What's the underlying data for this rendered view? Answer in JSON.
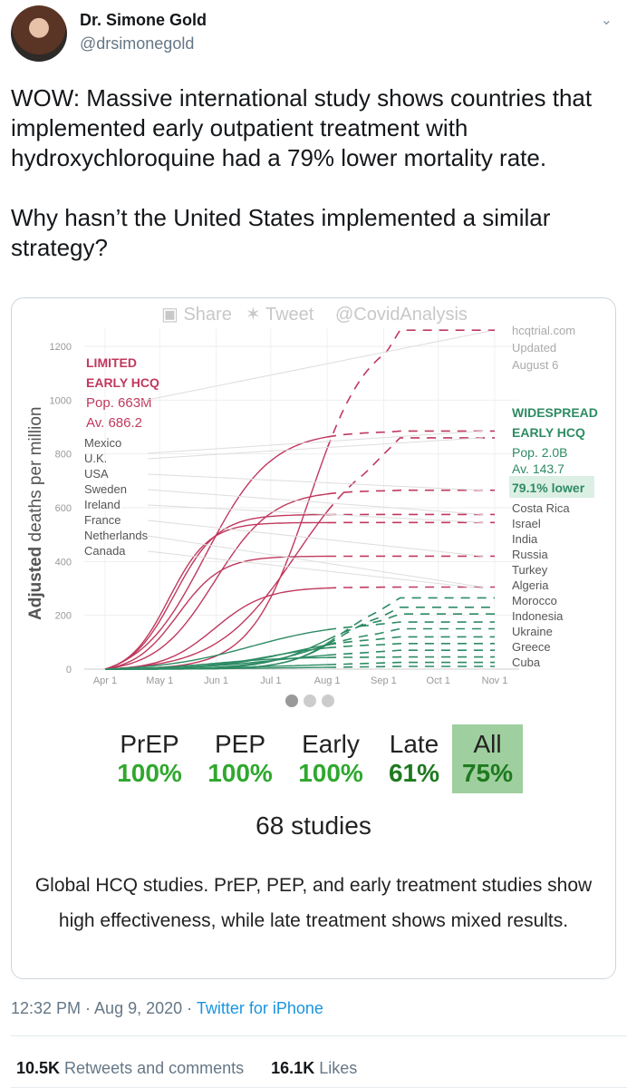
{
  "user": {
    "name": "Dr. Simone Gold",
    "handle": "@drsimonegold"
  },
  "tweet": {
    "paragraph1": "WOW: Massive international study shows countries that implemented early outpatient treatment with hydroxychloroquine had a 79% lower mortality rate.",
    "paragraph2": "Why hasn’t the United States implemented a similar strategy?"
  },
  "card": {
    "share_bar": {
      "share": "Share",
      "tweet": "Tweet",
      "account": "@CovidAnalysis"
    },
    "stats": [
      {
        "label": "PrEP",
        "value": "100%"
      },
      {
        "label": "PEP",
        "value": "100%"
      },
      {
        "label": "Early",
        "value": "100%"
      },
      {
        "label": "Late",
        "value": "61%"
      },
      {
        "label": "All",
        "value": "75%"
      }
    ],
    "studies": "68 studies",
    "caption": "Global HCQ studies. PrEP, PEP, and early treatment studies show high effectiveness, while late treatment shows mixed results."
  },
  "chart_data": {
    "type": "line",
    "ylabel_bold": "Adjusted",
    "ylabel_rest": " deaths per million",
    "yticks": [
      "0",
      "200",
      "400",
      "600",
      "800",
      "1000",
      "1200"
    ],
    "ylim": [
      0,
      1200
    ],
    "xticks": [
      "Apr 1",
      "May 1",
      "Jun 1",
      "Jul 1",
      "Aug 1",
      "Sep 1",
      "Oct 1",
      "Nov 1"
    ],
    "source": [
      "hcqtrial.com",
      "Updated",
      "August 6"
    ],
    "limited": {
      "title1": "LIMITED",
      "title2": "EARLY HCQ",
      "pop": "Pop. 663M",
      "avg": "Av. 686.2",
      "countries": [
        "Mexico",
        "U.K.",
        "USA",
        "Sweden",
        "Ireland",
        "France",
        "Netherlands",
        "Canada"
      ],
      "color": "#c0395e"
    },
    "widespread": {
      "title1": "WIDESPREAD",
      "title2": "EARLY HCQ",
      "pop": "Pop. 2.0B",
      "avg": "Av. 143.7",
      "lower": "79.1% lower",
      "countries": [
        "Costa Rica",
        "Israel",
        "India",
        "Russia",
        "Turkey",
        "Algeria",
        "Morocco",
        "Indonesia",
        "Ukraine",
        "Greece",
        "Cuba"
      ],
      "color": "#2e8b64"
    },
    "series": [
      {
        "group": "limited",
        "final": 1260,
        "mid": 112,
        "w": 16
      },
      {
        "group": "limited",
        "final": 885,
        "mid": 55,
        "w": 18
      },
      {
        "group": "limited",
        "final": 860,
        "mid": 105,
        "w": 22
      },
      {
        "group": "limited",
        "final": 665,
        "mid": 60,
        "w": 16
      },
      {
        "group": "limited",
        "final": 575,
        "mid": 38,
        "w": 12
      },
      {
        "group": "limited",
        "final": 545,
        "mid": 35,
        "w": 11
      },
      {
        "group": "limited",
        "final": 420,
        "mid": 40,
        "w": 12
      },
      {
        "group": "limited",
        "final": 305,
        "mid": 60,
        "w": 14
      },
      {
        "group": "widespread",
        "final": 265,
        "mid": 130,
        "w": 14
      },
      {
        "group": "widespread",
        "final": 230,
        "mid": 128,
        "w": 14
      },
      {
        "group": "widespread",
        "final": 205,
        "mid": 120,
        "w": 16
      },
      {
        "group": "widespread",
        "final": 175,
        "mid": 80,
        "w": 25
      },
      {
        "group": "widespread",
        "final": 150,
        "mid": 115,
        "w": 18
      },
      {
        "group": "widespread",
        "final": 120,
        "mid": 100,
        "w": 20
      },
      {
        "group": "widespread",
        "final": 95,
        "mid": 90,
        "w": 20
      },
      {
        "group": "widespread",
        "final": 70,
        "mid": 95,
        "w": 25
      },
      {
        "group": "widespread",
        "final": 45,
        "mid": 60,
        "w": 20
      },
      {
        "group": "widespread",
        "final": 25,
        "mid": 100,
        "w": 30
      },
      {
        "group": "widespread",
        "final": 10,
        "mid": 100,
        "w": 30
      }
    ],
    "dashed_from": "Aug 1"
  },
  "footer": {
    "time": "12:32 PM · Aug 9, 2020 · ",
    "client": "Twitter for iPhone",
    "retweets": "10.5K",
    "retweets_label": " Retweets and comments",
    "likes": "16.1K",
    "likes_label": " Likes"
  }
}
